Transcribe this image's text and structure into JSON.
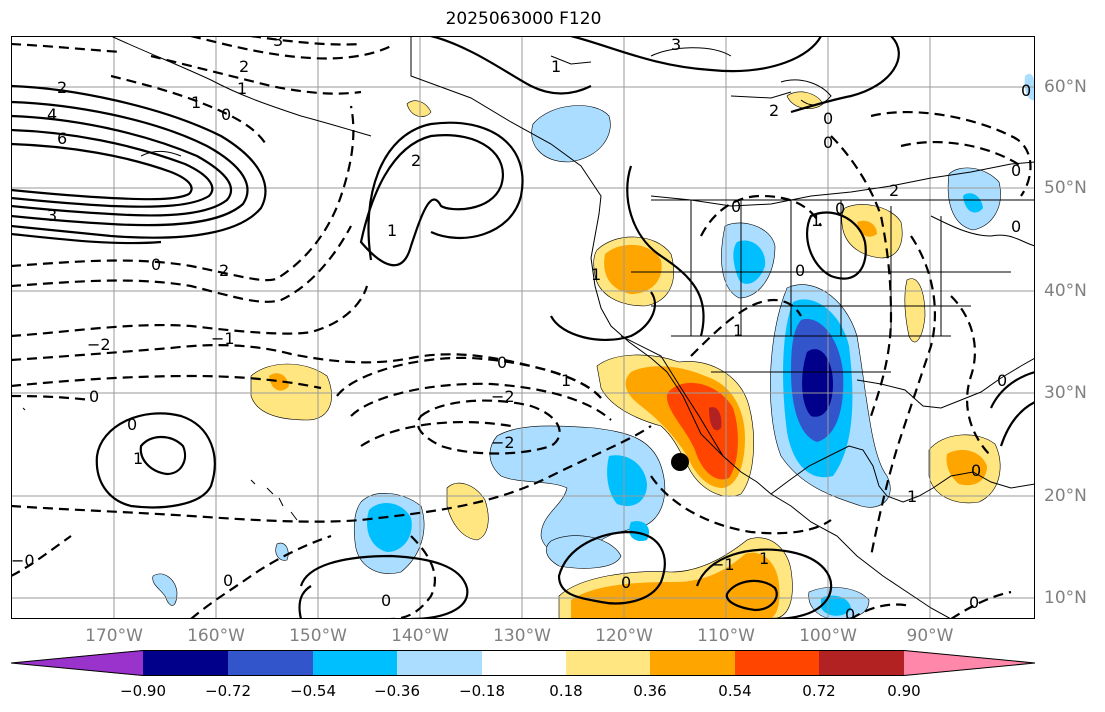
{
  "title": "2025063000 F120",
  "colors": {
    "land_line": "#000000",
    "grid": "#9a9a9a",
    "contour": "#000000",
    "tick_label": "#808080",
    "marker": "#000000"
  },
  "longitude_labels": [
    "170°W",
    "160°W",
    "150°W",
    "140°W",
    "130°W",
    "120°W",
    "110°W",
    "100°W",
    "90°W"
  ],
  "latitude_labels": [
    "60°N",
    "50°N",
    "40°N",
    "30°N",
    "20°N",
    "10°N"
  ],
  "colorbar": {
    "extend": "both",
    "bins": [
      {
        "color": "#9933cc",
        "range": "< -0.90"
      },
      {
        "color": "#00008b",
        "range": "-0.90 to -0.72"
      },
      {
        "color": "#3355cc",
        "range": "-0.72 to -0.54"
      },
      {
        "color": "#00bfff",
        "range": "-0.54 to -0.36"
      },
      {
        "color": "#aaddff",
        "range": "-0.36 to -0.18"
      },
      {
        "color": "#ffffff",
        "range": "-0.18 to 0.18"
      },
      {
        "color": "#ffe680",
        "range": "0.18 to 0.36"
      },
      {
        "color": "#ffa500",
        "range": "0.36 to 0.54"
      },
      {
        "color": "#ff4500",
        "range": "0.54 to 0.72"
      },
      {
        "color": "#b22222",
        "range": "0.72 to 0.90"
      },
      {
        "color": "#ff88aa",
        "range": "> 0.90"
      }
    ],
    "tick_labels": [
      "−0.90",
      "−0.72",
      "−0.54",
      "−0.36",
      "−0.18",
      "0.18",
      "0.36",
      "0.54",
      "0.72",
      "0.90"
    ]
  },
  "contour_labels": [
    "2",
    "4",
    "6",
    "3",
    "0",
    "2",
    "−2",
    "−1",
    "0",
    "0",
    "1",
    "0",
    "2",
    "3",
    "2",
    "1",
    "0",
    "0",
    "1",
    "1",
    "2",
    "0",
    "1",
    "1",
    "0",
    "−2",
    "−2",
    "0",
    "1",
    "0",
    "−1",
    "1",
    "0",
    "0",
    "0",
    "1",
    "0",
    "0",
    "−0",
    "0",
    "0",
    "3",
    "2",
    "1",
    "1",
    "0",
    "0",
    "0"
  ]
}
